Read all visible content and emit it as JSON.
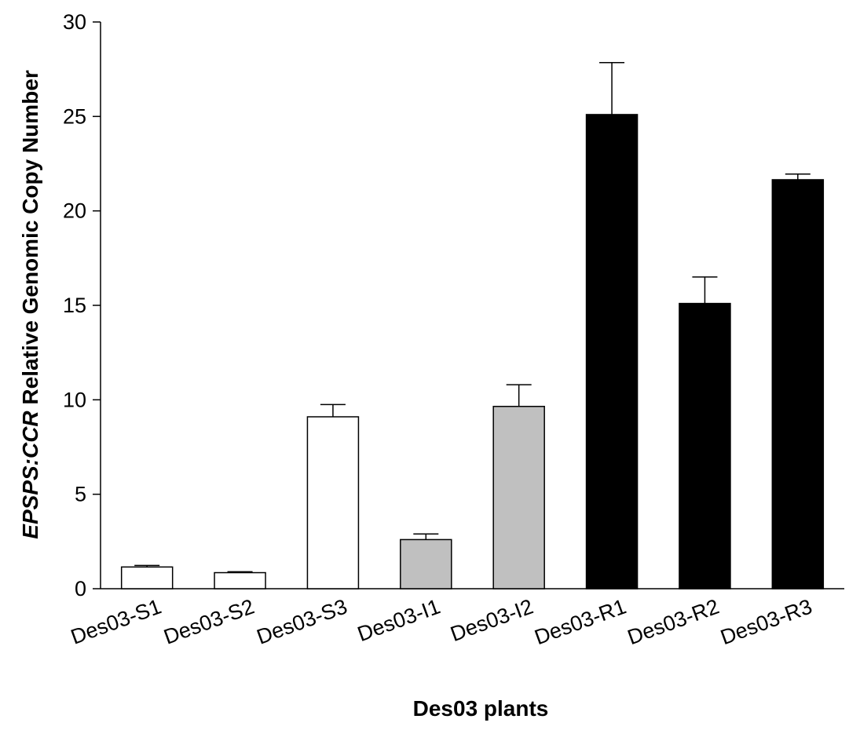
{
  "chart_data": {
    "type": "bar",
    "categories": [
      "Des03-S1",
      "Des03-S2",
      "Des03-S3",
      "Des03-I1",
      "Des03-I2",
      "Des03-R1",
      "Des03-R2",
      "Des03-R3"
    ],
    "values": [
      1.15,
      0.85,
      9.1,
      2.6,
      9.65,
      25.1,
      15.1,
      21.65
    ],
    "errors": [
      0.08,
      0.05,
      0.65,
      0.3,
      1.15,
      2.75,
      1.4,
      0.3
    ],
    "bar_colors": [
      "#ffffff",
      "#ffffff",
      "#ffffff",
      "#c0c0c0",
      "#c0c0c0",
      "#000000",
      "#000000",
      "#000000"
    ],
    "title": "",
    "xlabel": "Des03 plants",
    "ylabel_italic": "EPSPS:CCR",
    "ylabel_rest": " Relative Genomic Copy Number",
    "ylim": [
      0,
      30
    ],
    "yticks": [
      0,
      5,
      10,
      15,
      20,
      25,
      30
    ],
    "grid": false,
    "legend": "none"
  }
}
